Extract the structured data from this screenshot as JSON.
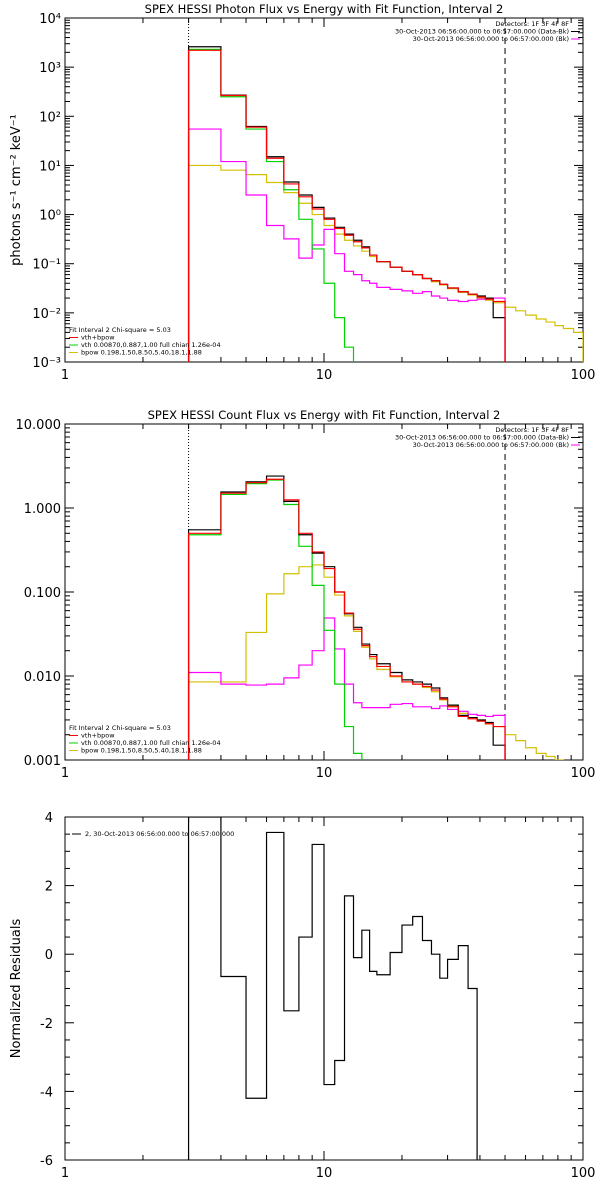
{
  "colors": {
    "total": "#000000",
    "red": "#ff0000",
    "vth": "#00d000",
    "bpow": "#d4c000",
    "bk": "#ff00ff"
  },
  "chart_data": [
    {
      "type": "line",
      "title": "SPEX HESSI Photon Flux vs Energy with Fit Function, Interval 2",
      "ylabel": "photons s⁻¹ cm⁻² keV⁻¹",
      "xlabel": "",
      "xscale": "log",
      "yscale": "log",
      "xlim": [
        1,
        100
      ],
      "ylim": [
        0.001,
        10000
      ],
      "xticks": [
        "1",
        "10",
        "100"
      ],
      "yticks": [
        "10⁻³",
        "10⁻²",
        "10⁻¹",
        "10⁰",
        "10¹",
        "10²",
        "10³",
        "10⁴"
      ],
      "legend_top": [
        "Detectors: 1F 3F 4F 8F",
        "30-Oct-2013 06:56:00.000 to 06:57:00.000 (Data-Bk)",
        "30-Oct-2013 06:56:00.000 to 06:57:00.000 (Bk)"
      ],
      "legend_bottom": [
        "Fit Interval 2   Chi-square = 5.03",
        "vth+bpow",
        "vth 0.00870,0.887,1.00  full chian 1.26e-04",
        "bpow 0.198,1.50,8.50,5.40,18.1,1.88"
      ],
      "vlines": [
        3.0,
        50.0
      ],
      "edges": [
        3.0,
        4.0,
        5.0,
        6.0,
        7.0,
        8.0,
        9.0,
        10.0,
        11.0,
        12.0,
        13.0,
        14.0,
        15.0,
        16.0,
        18.0,
        20.0,
        22.0,
        24.0,
        26.0,
        28.0,
        30.0,
        33.0,
        36.0,
        39.0,
        42.0,
        45.0,
        50.0
      ],
      "edges_bpow": [
        3.0,
        4.0,
        5.0,
        6.0,
        7.0,
        8.0,
        9.0,
        10.0,
        11.0,
        12.0,
        13.0,
        14.0,
        15.0,
        16.0,
        18.0,
        20.0,
        22.0,
        24.0,
        26.0,
        28.0,
        30.0,
        33.0,
        36.0,
        39.0,
        42.0,
        45.0,
        50.0,
        55.0,
        60.0,
        66.0,
        72.0,
        78.0,
        84.0,
        92.0,
        100.0
      ],
      "series": [
        {
          "name": "30-Oct-2013 06:56:00.000 to 06:57:00.000 (Data-Bk)",
          "color_key": "total",
          "edges_key": "edges",
          "values": [
            2600,
            270,
            62,
            15,
            4.6,
            2.5,
            1.4,
            0.85,
            0.55,
            0.4,
            0.3,
            0.22,
            0.15,
            0.11,
            0.085,
            0.07,
            0.06,
            0.05,
            0.045,
            0.038,
            0.032,
            0.027,
            0.024,
            0.022,
            0.02,
            0.008
          ]
        },
        {
          "name": "vth+bpow",
          "color_key": "red",
          "edges_key": "edges",
          "values": [
            2200,
            265,
            60,
            14,
            4.2,
            2.3,
            1.3,
            0.8,
            0.52,
            0.38,
            0.28,
            0.21,
            0.15,
            0.11,
            0.085,
            0.07,
            0.06,
            0.05,
            0.045,
            0.038,
            0.032,
            0.027,
            0.024,
            0.021,
            0.019,
            0.017
          ]
        },
        {
          "name": "vth",
          "color_key": "vth",
          "edges_key": "edges",
          "values": [
            2300,
            250,
            55,
            12,
            3.2,
            0.8,
            0.2,
            0.04,
            0.008,
            0.002,
            0.0009
          ]
        },
        {
          "name": "bpow",
          "color_key": "bpow",
          "edges_key": "edges_bpow",
          "values": [
            10,
            8,
            6.5,
            4.5,
            2.8,
            1.7,
            1.0,
            0.6,
            0.4,
            0.3,
            0.23,
            0.18,
            0.14,
            0.11,
            0.085,
            0.07,
            0.06,
            0.05,
            0.043,
            0.037,
            0.031,
            0.026,
            0.023,
            0.02,
            0.018,
            0.016,
            0.013,
            0.011,
            0.009,
            0.0075,
            0.0065,
            0.0055,
            0.0048,
            0.004
          ]
        },
        {
          "name": "30-Oct-2013 06:56:00.000 to 06:57:00.000 (Bk)",
          "color_key": "bk",
          "edges_key": "edges",
          "values": [
            55,
            12,
            2.5,
            0.6,
            0.32,
            0.13,
            0.24,
            0.5,
            0.16,
            0.07,
            0.06,
            0.045,
            0.04,
            0.033,
            0.03,
            0.028,
            0.025,
            0.027,
            0.022,
            0.02,
            0.018,
            0.017,
            0.018,
            0.019,
            0.019,
            0.02
          ]
        }
      ]
    },
    {
      "type": "line",
      "title": "SPEX HESSI Count Flux vs Energy with Fit Function, Interval 2",
      "ylabel": "",
      "xlabel": "",
      "xscale": "log",
      "yscale": "log",
      "xlim": [
        1,
        100
      ],
      "ylim": [
        0.001,
        10
      ],
      "xticks": [
        "1",
        "10",
        "100"
      ],
      "yticks": [
        "0.001",
        "0.010",
        "0.100",
        "1.000",
        "10.000"
      ],
      "legend_top": [
        "Detectors: 1F 3F 4F 8F",
        "30-Oct-2013 06:56:00.000 to 06:57:00.000 (Data-Bk)",
        "30-Oct-2013 06:56:00.000 to 06:57:00.000 (Bk)"
      ],
      "legend_bottom": [
        "Fit Interval 2   Chi-square = 5.03",
        "vth+bpow",
        "vth 0.00870,0.887,1.00  full chian 1.26e-04",
        "bpow 0.198,1.50,8.50,5.40,18.1,1.88"
      ],
      "vlines": [
        3.0,
        50.0
      ],
      "edges": [
        3.0,
        4.0,
        5.0,
        6.0,
        7.0,
        8.0,
        9.0,
        10.0,
        11.0,
        12.0,
        13.0,
        14.0,
        15.0,
        16.0,
        18.0,
        20.0,
        22.0,
        24.0,
        26.0,
        28.0,
        30.0,
        33.0,
        36.0,
        39.0,
        42.0,
        45.0,
        50.0
      ],
      "edges_bpow": [
        3.0,
        4.0,
        5.0,
        6.0,
        7.0,
        8.0,
        9.0,
        10.0,
        11.0,
        12.0,
        13.0,
        14.0,
        15.0,
        16.0,
        18.0,
        20.0,
        22.0,
        24.0,
        26.0,
        28.0,
        30.0,
        33.0,
        36.0,
        39.0,
        42.0,
        45.0,
        50.0,
        55.0,
        60.0,
        66.0,
        72.0,
        78.0,
        84.0,
        92.0,
        100.0
      ],
      "series": [
        {
          "name": "30-Oct-2013 06:56:00.000 to 06:57:00.000 (Data-Bk)",
          "color_key": "total",
          "edges_key": "edges",
          "values": [
            0.55,
            1.55,
            2.05,
            2.4,
            1.2,
            0.48,
            0.29,
            0.2,
            0.1,
            0.055,
            0.038,
            0.024,
            0.018,
            0.014,
            0.011,
            0.009,
            0.0085,
            0.008,
            0.0072,
            0.0055,
            0.0045,
            0.0034,
            0.0032,
            0.003,
            0.0028,
            0.0015
          ]
        },
        {
          "name": "vth+bpow",
          "color_key": "red",
          "edges_key": "edges",
          "values": [
            0.5,
            1.5,
            2.0,
            2.2,
            1.25,
            0.5,
            0.3,
            0.19,
            0.1,
            0.056,
            0.036,
            0.023,
            0.017,
            0.013,
            0.01,
            0.0085,
            0.008,
            0.0075,
            0.0068,
            0.0053,
            0.0043,
            0.0033,
            0.0031,
            0.0029,
            0.0027,
            0.0025
          ]
        },
        {
          "name": "vth",
          "color_key": "vth",
          "edges_key": "edges",
          "values": [
            0.48,
            1.45,
            1.95,
            2.15,
            1.1,
            0.35,
            0.12,
            0.035,
            0.008,
            0.0025,
            0.0012
          ]
        },
        {
          "name": "bpow",
          "color_key": "bpow",
          "edges_key": "edges_bpow",
          "values": [
            0.0085,
            0.0085,
            0.033,
            0.095,
            0.165,
            0.2,
            0.21,
            0.15,
            0.092,
            0.052,
            0.034,
            0.022,
            0.016,
            0.012,
            0.0098,
            0.0085,
            0.008,
            0.0073,
            0.0065,
            0.0052,
            0.0044,
            0.0036,
            0.0032,
            0.003,
            0.0027,
            0.0025,
            0.002,
            0.0017,
            0.0014,
            0.0012,
            0.0011,
            0.001,
            0.0009,
            0.0008
          ]
        },
        {
          "name": "30-Oct-2013 06:56:00.000 to 06:57:00.000 (Bk)",
          "color_key": "bk",
          "edges_key": "edges",
          "values": [
            0.011,
            0.008,
            0.0078,
            0.008,
            0.0095,
            0.0135,
            0.02,
            0.049,
            0.021,
            0.008,
            0.0048,
            0.0042,
            0.0042,
            0.0042,
            0.0046,
            0.0047,
            0.0043,
            0.0043,
            0.0041,
            0.0044,
            0.004,
            0.0038,
            0.0035,
            0.0034,
            0.0033,
            0.0034
          ]
        }
      ]
    },
    {
      "type": "line",
      "title": "",
      "ylabel": "Normalized Residuals",
      "xlabel": "",
      "xscale": "log",
      "yscale": "linear",
      "xlim": [
        1,
        100
      ],
      "ylim": [
        -6,
        4
      ],
      "xticks": [
        "1",
        "10",
        "100"
      ],
      "yticks": [
        "-6",
        "-4",
        "-2",
        "0",
        "2",
        "4"
      ],
      "legend_top": [
        "2, 30-Oct-2013 06:56:00.000 to 06:57:00.000"
      ],
      "vlines": [],
      "edges": [
        3.0,
        4.0,
        5.0,
        6.0,
        7.0,
        8.0,
        9.0,
        10.0,
        11.0,
        12.0,
        13.0,
        14.0,
        15.0,
        16.0,
        18.0,
        20.0,
        22.0,
        24.0,
        26.0,
        28.0,
        30.0,
        33.0,
        36.0,
        39.0,
        42.0,
        45.0,
        50.0
      ],
      "series": [
        {
          "name": "",
          "color_key": "total",
          "edges_key": "edges",
          "values": [
            4.0,
            -0.65,
            -4.2,
            3.55,
            -1.65,
            0.5,
            3.2,
            -3.8,
            -3.1,
            1.7,
            -0.1,
            0.7,
            -0.5,
            -0.6,
            0.05,
            0.85,
            1.1,
            0.4,
            0.0,
            -0.7,
            -0.15,
            0.25,
            -1.0
          ]
        }
      ]
    }
  ]
}
